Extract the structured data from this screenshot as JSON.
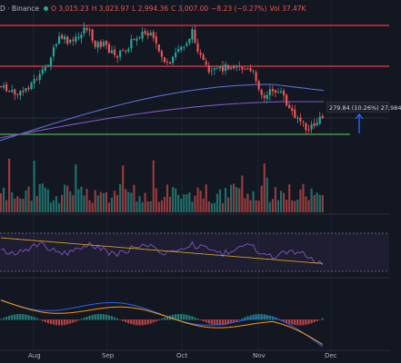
{
  "header": {
    "symbol_suffix": "D · Binance",
    "open": "O 3,015.23",
    "high": "H 3,023.97",
    "low": "L 2,994.36",
    "close": "C 3,007.00",
    "change": "−8.23 (−0.27%)",
    "volume": "Vol 37.47K"
  },
  "measure_label": "279.84 (10.26%) 27,984",
  "x_axis_labels": [
    "Aug",
    "Sep",
    "Oct",
    "Nov",
    "Dec"
  ],
  "colors": {
    "background": "#131722",
    "up": "#26a69a",
    "down": "#ef5350",
    "ma_long": "#5b6bd5",
    "ma_slow": "#7e57c2",
    "support_line": "#4caf50",
    "resistance_line": "#f23645",
    "macd_line": "#2962ff",
    "signal_line": "#ff9800",
    "rsi_line": "#7e57c2"
  },
  "chart_data": {
    "type": "candlestick",
    "series": [
      {
        "name": "price"
      }
    ],
    "indicators": [
      "Volume",
      "RSI",
      "MACD"
    ]
  }
}
